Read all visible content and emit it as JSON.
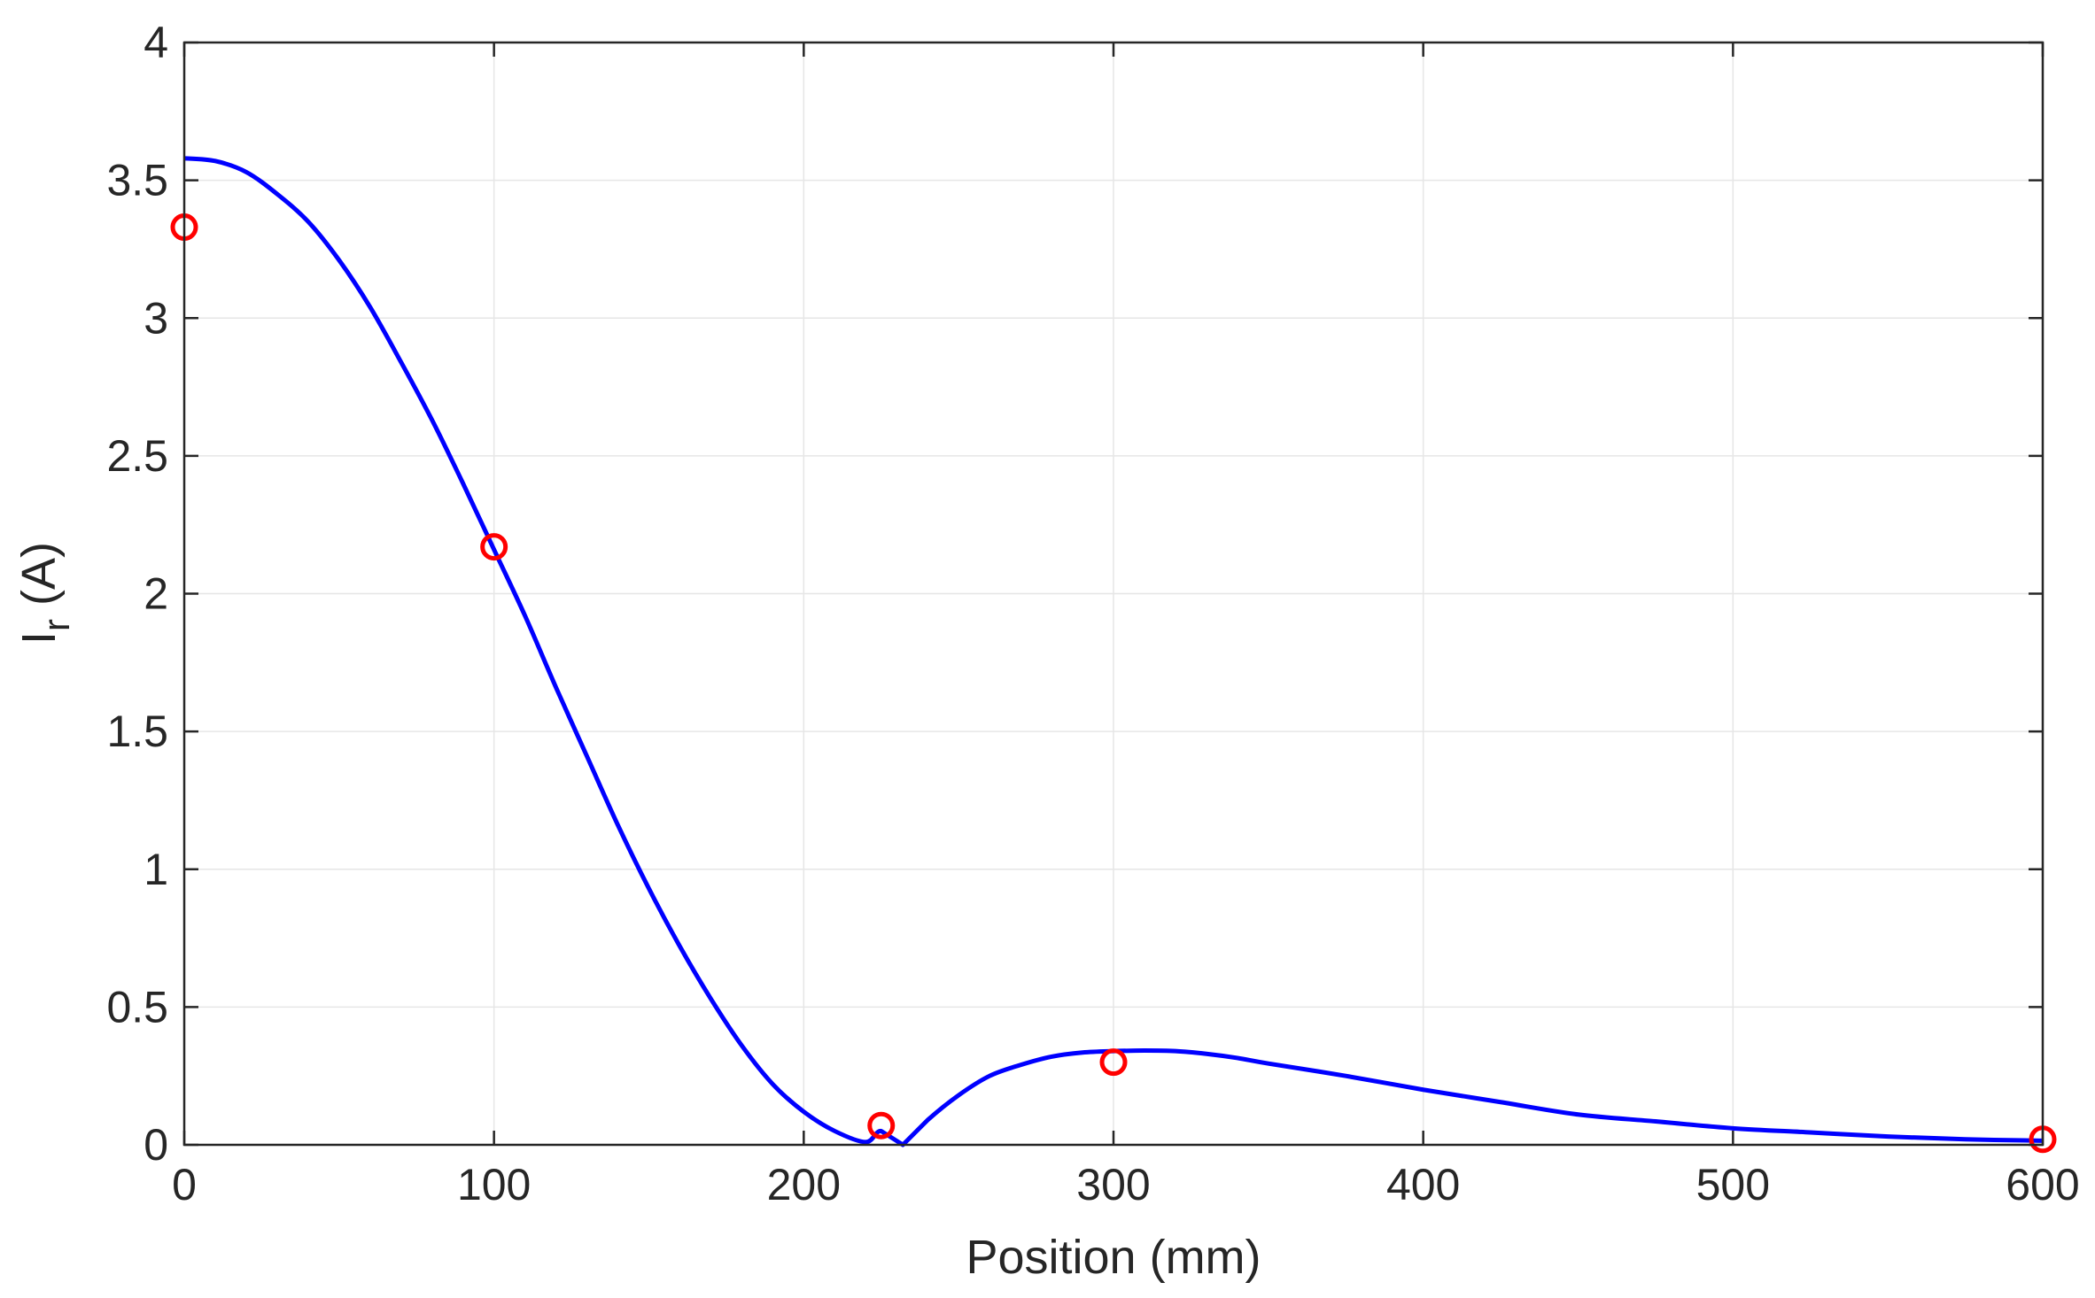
{
  "chart_data": {
    "type": "line",
    "title": "",
    "xlabel": "Position (mm)",
    "ylabel_main": "I",
    "ylabel_sub": "r",
    "ylabel_unit": " (A)",
    "xlim": [
      0,
      600
    ],
    "ylim": [
      0,
      4
    ],
    "xticks": [
      0,
      100,
      200,
      300,
      400,
      500,
      600
    ],
    "xtick_labels": [
      "0",
      "100",
      "200",
      "300",
      "400",
      "500",
      "600"
    ],
    "yticks": [
      0,
      0.5,
      1,
      1.5,
      2,
      2.5,
      3,
      3.5,
      4
    ],
    "ytick_labels": [
      "0",
      "0.5",
      "1",
      "1.5",
      "2",
      "2.5",
      "3",
      "3.5",
      "4"
    ],
    "grid": true,
    "series": [
      {
        "type": "line",
        "color": "#0000ff",
        "x": [
          0,
          10,
          20,
          30,
          40,
          50,
          60,
          70,
          80,
          90,
          100,
          110,
          120,
          130,
          140,
          150,
          160,
          170,
          180,
          190,
          200,
          210,
          220,
          225,
          232,
          240,
          250,
          260,
          270,
          280,
          290,
          300,
          310,
          320,
          330,
          340,
          350,
          375,
          400,
          425,
          450,
          475,
          500,
          525,
          550,
          575,
          600
        ],
        "y": [
          3.58,
          3.57,
          3.53,
          3.45,
          3.35,
          3.21,
          3.04,
          2.84,
          2.63,
          2.4,
          2.16,
          1.92,
          1.66,
          1.41,
          1.16,
          0.93,
          0.72,
          0.53,
          0.36,
          0.22,
          0.12,
          0.05,
          0.01,
          0.05,
          0.0,
          0.09,
          0.18,
          0.25,
          0.29,
          0.32,
          0.335,
          0.34,
          0.342,
          0.34,
          0.33,
          0.315,
          0.295,
          0.25,
          0.2,
          0.155,
          0.11,
          0.085,
          0.06,
          0.045,
          0.03,
          0.02,
          0.015
        ]
      },
      {
        "type": "scatter",
        "marker": "circle",
        "color": "#ff0000",
        "x": [
          0,
          100,
          225,
          300,
          600
        ],
        "y": [
          3.33,
          2.17,
          0.07,
          0.3,
          0.02
        ]
      }
    ]
  }
}
